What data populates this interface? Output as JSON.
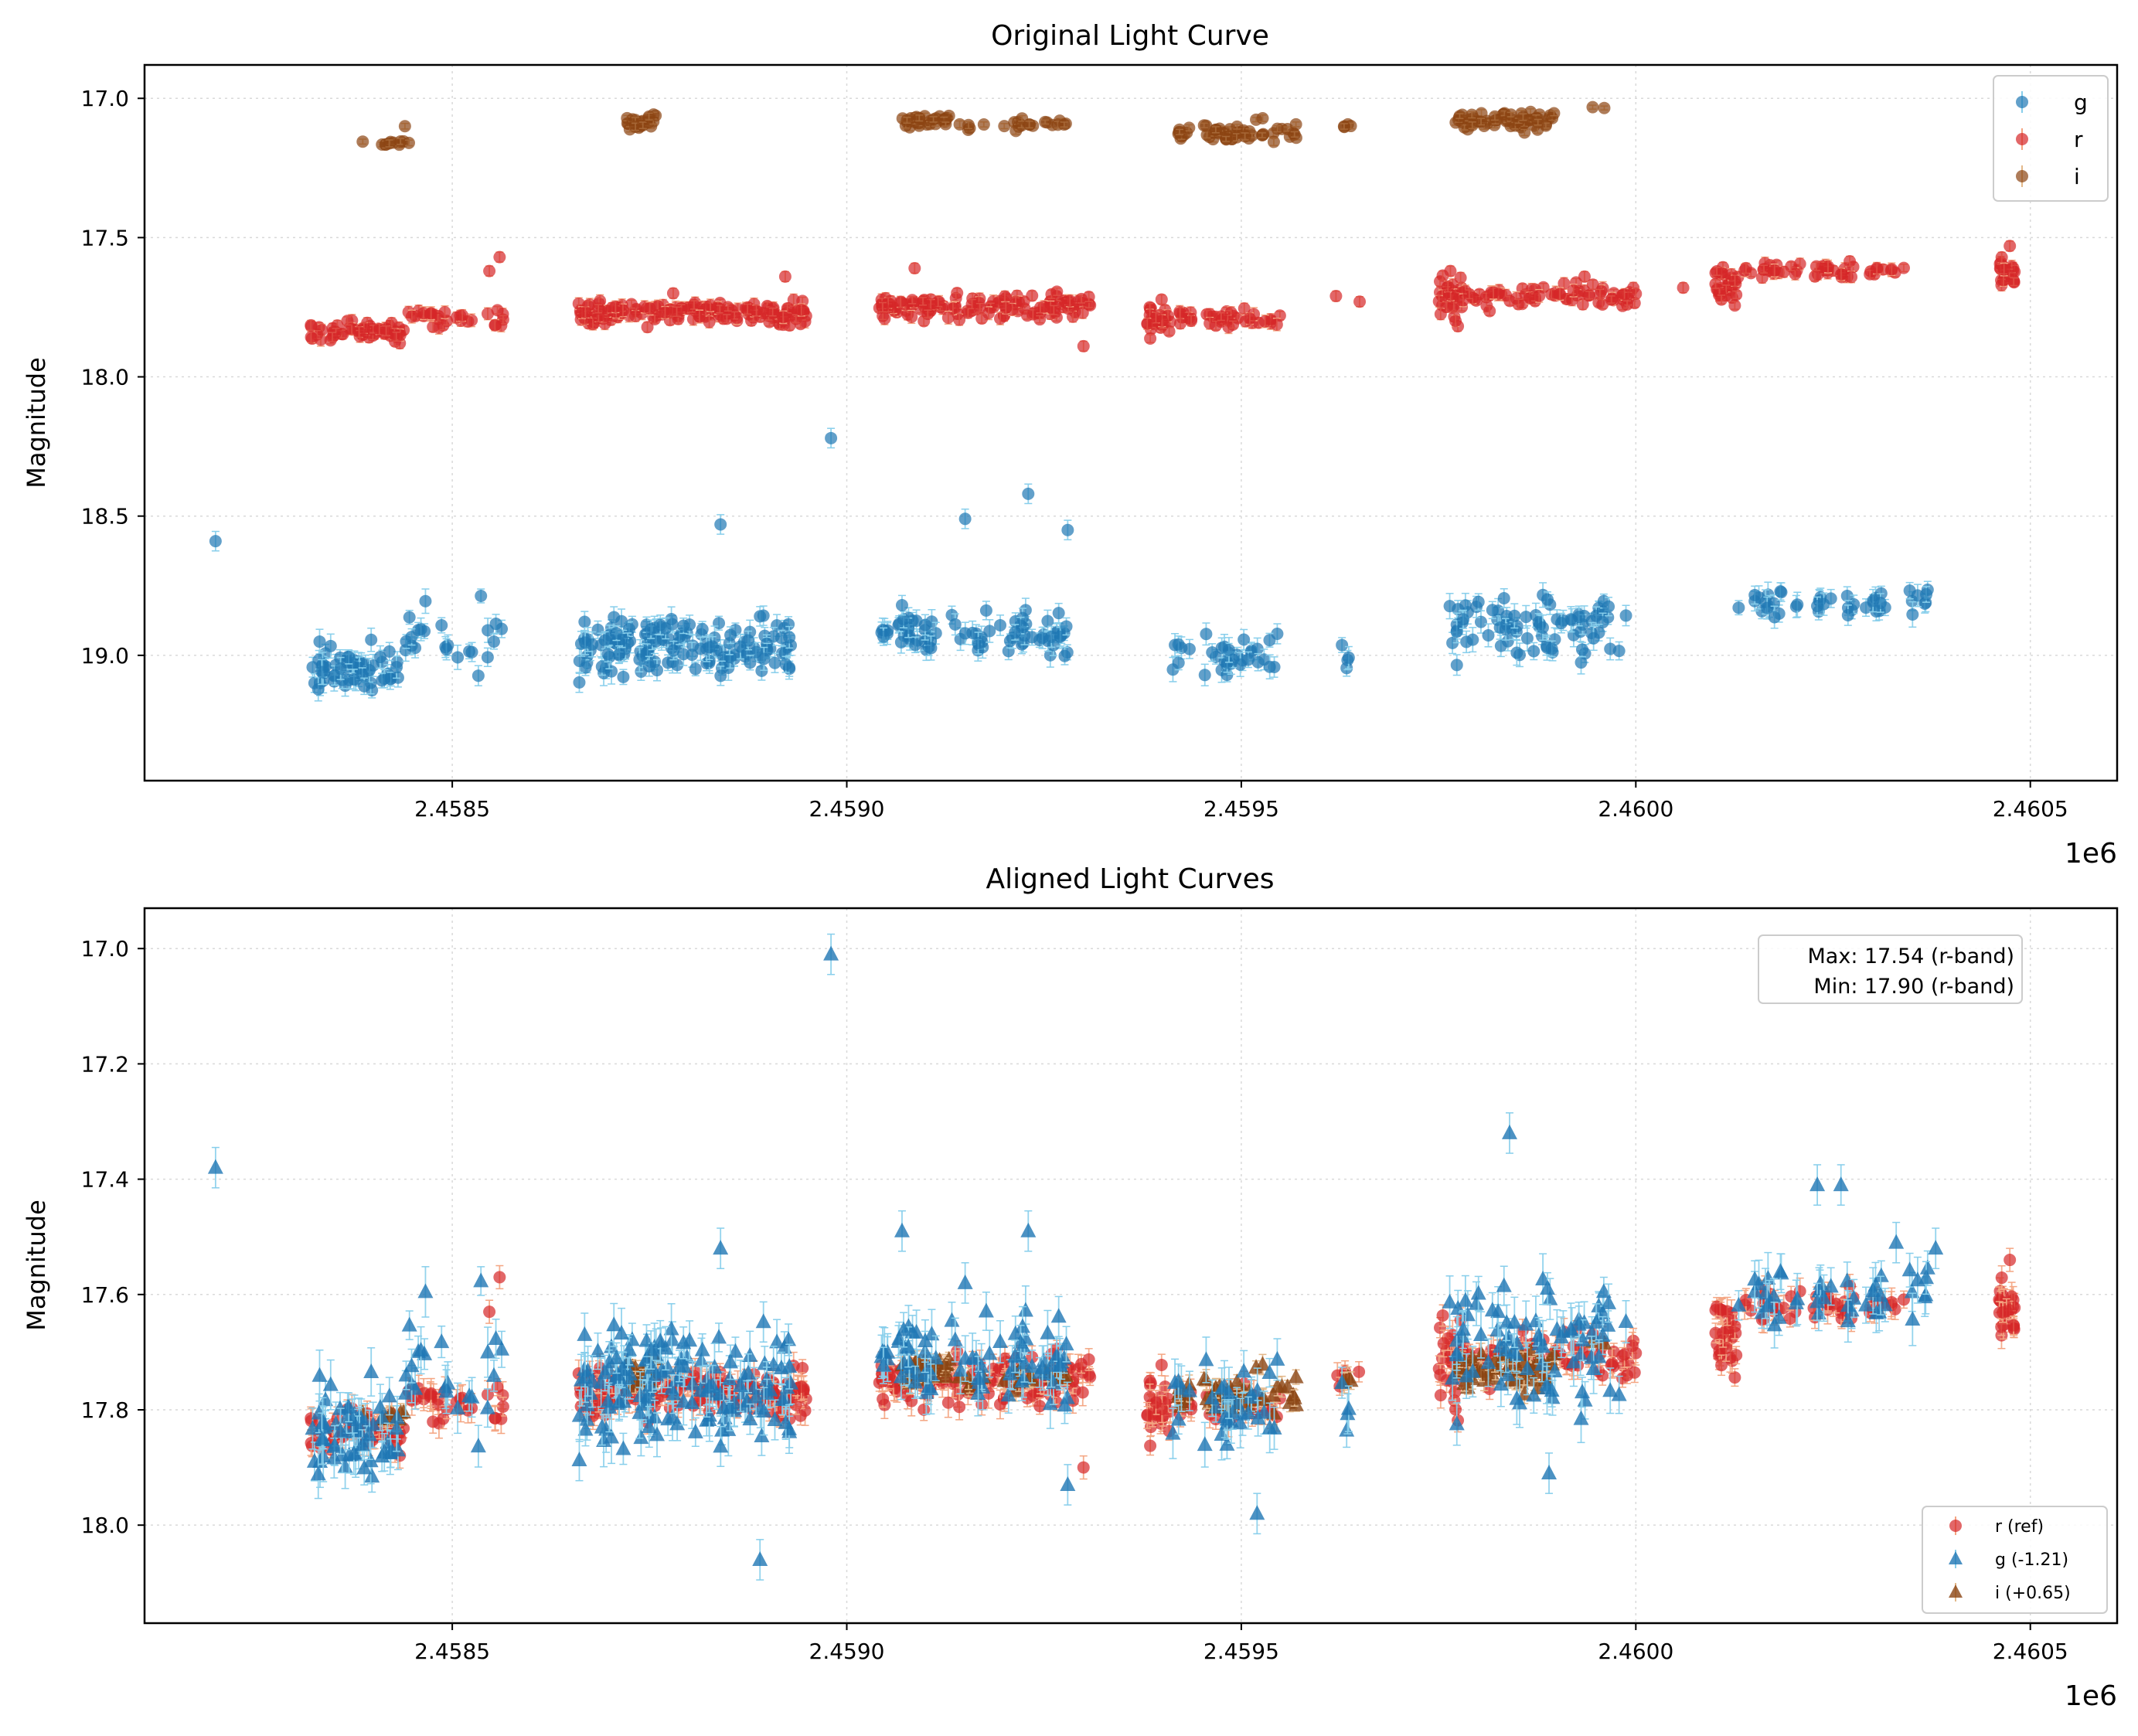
{
  "chart_data": [
    {
      "type": "scatter",
      "title": "Original Light Curve",
      "xlabel": "",
      "ylabel": "Magnitude",
      "x_offset_label": "1e6",
      "xlim": [
        2458110,
        2460610
      ],
      "ylim": [
        19.45,
        16.88
      ],
      "y_inverted": true,
      "grid": true,
      "xticks": [
        2458500,
        2459000,
        2459500,
        2460000,
        2460500
      ],
      "xtick_labels": [
        "2.4585",
        "2.4590",
        "2.4595",
        "2.4600",
        "2.4605"
      ],
      "yticks": [
        17.0,
        17.5,
        18.0,
        18.5,
        19.0
      ],
      "ytick_labels": [
        "17.0",
        "17.5",
        "18.0",
        "18.5",
        "19.0"
      ],
      "legend_position": "top-right",
      "legend": [
        {
          "label": "g",
          "color": "#1f77b4",
          "marker": "circle"
        },
        {
          "label": "r",
          "color": "#d62728",
          "marker": "circle"
        },
        {
          "label": "i",
          "color": "#8b4513",
          "marker": "circle"
        }
      ],
      "series": [
        {
          "name": "g",
          "color": "#1f77b4",
          "err_color": "#87ceeb",
          "marker": "circle",
          "err": 0.035,
          "seed": 11,
          "x": [
            2458200,
            2458840,
            2458890,
            2458980,
            2459070,
            2459150,
            2459230,
            2459280
          ],
          "y": [
            18.59,
            18.53,
            18.86,
            18.22,
            18.82,
            18.51,
            18.42,
            18.55
          ],
          "clusters": [
            {
              "x0": 2458320,
              "x1": 2458440,
              "n": 60,
              "ymean": 19.05,
              "yspread": 0.06
            },
            {
              "x0": 2458440,
              "x1": 2458570,
              "n": 24,
              "ymean": 18.95,
              "yspread": 0.1
            },
            {
              "x0": 2458660,
              "x1": 2458930,
              "n": 150,
              "ymean": 18.97,
              "yspread": 0.07
            },
            {
              "x0": 2459040,
              "x1": 2459280,
              "n": 80,
              "ymean": 18.92,
              "yspread": 0.05
            },
            {
              "x0": 2459410,
              "x1": 2459550,
              "n": 35,
              "ymean": 19.0,
              "yspread": 0.05
            },
            {
              "x0": 2459620,
              "x1": 2459650,
              "n": 4,
              "ymean": 19.02,
              "yspread": 0.06
            },
            {
              "x0": 2459760,
              "x1": 2459990,
              "n": 80,
              "ymean": 18.9,
              "yspread": 0.08
            },
            {
              "x0": 2460130,
              "x1": 2460380,
              "n": 45,
              "ymean": 18.81,
              "yspread": 0.03
            }
          ]
        },
        {
          "name": "r",
          "color": "#d62728",
          "err_color": "#f4a582",
          "marker": "circle",
          "err": 0.018,
          "seed": 23,
          "x": [
            2458560,
            2458547,
            2458780,
            2458922,
            2459086,
            2459300,
            2459620,
            2459650,
            2459765,
            2459935,
            2460060,
            2460474
          ],
          "y": [
            17.57,
            17.62,
            17.7,
            17.64,
            17.61,
            17.89,
            17.71,
            17.73,
            17.62,
            17.64,
            17.68,
            17.53
          ],
          "clusters": [
            {
              "x0": 2458320,
              "x1": 2458440,
              "n": 60,
              "ymean": 17.84,
              "yspread": 0.025
            },
            {
              "x0": 2458440,
              "x1": 2458570,
              "n": 30,
              "ymean": 17.79,
              "yspread": 0.03
            },
            {
              "x0": 2458660,
              "x1": 2458950,
              "n": 170,
              "ymean": 17.77,
              "yspread": 0.025
            },
            {
              "x0": 2459040,
              "x1": 2459310,
              "n": 130,
              "ymean": 17.75,
              "yspread": 0.03
            },
            {
              "x0": 2459380,
              "x1": 2459410,
              "n": 25,
              "ymean": 17.79,
              "yspread": 0.04
            },
            {
              "x0": 2459420,
              "x1": 2459550,
              "n": 40,
              "ymean": 17.79,
              "yspread": 0.02
            },
            {
              "x0": 2459750,
              "x1": 2459780,
              "n": 30,
              "ymean": 17.72,
              "yspread": 0.05
            },
            {
              "x0": 2459780,
              "x1": 2460000,
              "n": 70,
              "ymean": 17.71,
              "yspread": 0.03
            },
            {
              "x0": 2460100,
              "x1": 2460130,
              "n": 30,
              "ymean": 17.67,
              "yspread": 0.04
            },
            {
              "x0": 2460130,
              "x1": 2460340,
              "n": 50,
              "ymean": 17.62,
              "yspread": 0.02
            },
            {
              "x0": 2460460,
              "x1": 2460480,
              "n": 25,
              "ymean": 17.62,
              "yspread": 0.03
            }
          ]
        },
        {
          "name": "i",
          "color": "#8b4513",
          "err_color": "#e3b88a",
          "marker": "circle",
          "err": 0.01,
          "seed": 37,
          "x": [
            2458440,
            2458445
          ],
          "y": [
            17.1,
            17.16
          ],
          "clusters": [
            {
              "x0": 2458380,
              "x1": 2458440,
              "n": 10,
              "ymean": 17.16,
              "yspread": 0.015
            },
            {
              "x0": 2458720,
              "x1": 2458760,
              "n": 22,
              "ymean": 17.09,
              "yspread": 0.02
            },
            {
              "x0": 2459070,
              "x1": 2459130,
              "n": 30,
              "ymean": 17.08,
              "yspread": 0.015
            },
            {
              "x0": 2459130,
              "x1": 2459280,
              "n": 22,
              "ymean": 17.09,
              "yspread": 0.015
            },
            {
              "x0": 2459420,
              "x1": 2459570,
              "n": 55,
              "ymean": 17.12,
              "yspread": 0.025
            },
            {
              "x0": 2459620,
              "x1": 2459640,
              "n": 4,
              "ymean": 17.1,
              "yspread": 0.005
            },
            {
              "x0": 2459770,
              "x1": 2459900,
              "n": 60,
              "ymean": 17.08,
              "yspread": 0.025
            },
            {
              "x0": 2459940,
              "x1": 2459960,
              "n": 2,
              "ymean": 17.03,
              "yspread": 0.01
            }
          ]
        }
      ]
    },
    {
      "type": "scatter",
      "title": "Aligned Light Curves",
      "xlabel": "",
      "ylabel": "Magnitude",
      "x_offset_label": "1e6",
      "xlim": [
        2458110,
        2460610
      ],
      "ylim": [
        18.17,
        16.93
      ],
      "y_inverted": true,
      "grid": true,
      "xticks": [
        2458500,
        2459000,
        2459500,
        2460000,
        2460500
      ],
      "xtick_labels": [
        "2.4585",
        "2.4590",
        "2.4595",
        "2.4600",
        "2.4605"
      ],
      "yticks": [
        17.0,
        17.2,
        17.4,
        17.6,
        17.8,
        18.0
      ],
      "ytick_labels": [
        "17.0",
        "17.2",
        "17.4",
        "17.6",
        "17.8",
        "18.0"
      ],
      "annotation": {
        "line1": "Max: 17.54 (r-band)",
        "line2": "Min: 17.90 (r-band)",
        "position": "top-right"
      },
      "legend_position": "lower-right",
      "legend": [
        {
          "label": "r (ref)",
          "color": "#d62728",
          "marker": "circle"
        },
        {
          "label": "g (-1.21)",
          "color": "#1f77b4",
          "marker": "triangle"
        },
        {
          "label": "i (+0.65)",
          "color": "#8b4513",
          "marker": "triangle"
        }
      ],
      "series": [
        {
          "name": "r (ref)",
          "color": "#d62728",
          "err_color": "#f4a582",
          "marker": "circle",
          "err": 0.02,
          "seed": 23,
          "x": [
            2458560,
            2458547,
            2459300,
            2460474
          ],
          "y": [
            17.57,
            17.63,
            17.9,
            17.54
          ],
          "clusters": [
            {
              "x0": 2458320,
              "x1": 2458440,
              "n": 60,
              "ymean": 17.84,
              "yspread": 0.025
            },
            {
              "x0": 2458440,
              "x1": 2458570,
              "n": 30,
              "ymean": 17.79,
              "yspread": 0.03
            },
            {
              "x0": 2458660,
              "x1": 2458950,
              "n": 170,
              "ymean": 17.77,
              "yspread": 0.025
            },
            {
              "x0": 2459040,
              "x1": 2459310,
              "n": 130,
              "ymean": 17.75,
              "yspread": 0.03
            },
            {
              "x0": 2459380,
              "x1": 2459410,
              "n": 25,
              "ymean": 17.79,
              "yspread": 0.04
            },
            {
              "x0": 2459420,
              "x1": 2459550,
              "n": 40,
              "ymean": 17.79,
              "yspread": 0.02
            },
            {
              "x0": 2459620,
              "x1": 2459650,
              "n": 6,
              "ymean": 17.75,
              "yspread": 0.02
            },
            {
              "x0": 2459750,
              "x1": 2459780,
              "n": 30,
              "ymean": 17.72,
              "yspread": 0.05
            },
            {
              "x0": 2459780,
              "x1": 2460000,
              "n": 70,
              "ymean": 17.71,
              "yspread": 0.03
            },
            {
              "x0": 2460100,
              "x1": 2460130,
              "n": 30,
              "ymean": 17.67,
              "yspread": 0.04
            },
            {
              "x0": 2460130,
              "x1": 2460340,
              "n": 50,
              "ymean": 17.62,
              "yspread": 0.02
            },
            {
              "x0": 2460460,
              "x1": 2460480,
              "n": 25,
              "ymean": 17.62,
              "yspread": 0.03
            }
          ]
        },
        {
          "name": "i (+0.65)",
          "color": "#8b4513",
          "err_color": "#e3b88a",
          "marker": "triangle",
          "err": 0.015,
          "seed": 37,
          "x": [],
          "y": [],
          "clusters": [
            {
              "x0": 2458380,
              "x1": 2458440,
              "n": 10,
              "ymean": 17.81,
              "yspread": 0.015
            },
            {
              "x0": 2458720,
              "x1": 2458760,
              "n": 22,
              "ymean": 17.74,
              "yspread": 0.02
            },
            {
              "x0": 2459070,
              "x1": 2459130,
              "n": 30,
              "ymean": 17.73,
              "yspread": 0.015
            },
            {
              "x0": 2459130,
              "x1": 2459280,
              "n": 22,
              "ymean": 17.74,
              "yspread": 0.015
            },
            {
              "x0": 2459420,
              "x1": 2459570,
              "n": 55,
              "ymean": 17.77,
              "yspread": 0.025
            },
            {
              "x0": 2459620,
              "x1": 2459640,
              "n": 4,
              "ymean": 17.75,
              "yspread": 0.005
            },
            {
              "x0": 2459770,
              "x1": 2459900,
              "n": 60,
              "ymean": 17.73,
              "yspread": 0.025
            },
            {
              "x0": 2459940,
              "x1": 2459960,
              "n": 2,
              "ymean": 17.68,
              "yspread": 0.01
            }
          ]
        },
        {
          "name": "g (-1.21)",
          "color": "#1f77b4",
          "err_color": "#87ceeb",
          "marker": "triangle",
          "err": 0.035,
          "seed": 11,
          "x": [
            2458200,
            2458840,
            2458890,
            2458980,
            2459070,
            2459150,
            2459230,
            2459280,
            2459520,
            2459840,
            2459890,
            2460230,
            2460260,
            2460330,
            2460380
          ],
          "y": [
            17.38,
            17.52,
            18.06,
            17.01,
            17.49,
            17.58,
            17.49,
            17.93,
            17.98,
            17.32,
            17.91,
            17.41,
            17.41,
            17.51,
            17.52
          ],
          "clusters": [
            {
              "x0": 2458320,
              "x1": 2458440,
              "n": 60,
              "ymean": 17.84,
              "yspread": 0.06
            },
            {
              "x0": 2458440,
              "x1": 2458570,
              "n": 24,
              "ymean": 17.74,
              "yspread": 0.1
            },
            {
              "x0": 2458660,
              "x1": 2458930,
              "n": 150,
              "ymean": 17.76,
              "yspread": 0.07
            },
            {
              "x0": 2459040,
              "x1": 2459280,
              "n": 80,
              "ymean": 17.71,
              "yspread": 0.05
            },
            {
              "x0": 2459410,
              "x1": 2459550,
              "n": 35,
              "ymean": 17.79,
              "yspread": 0.05
            },
            {
              "x0": 2459620,
              "x1": 2459650,
              "n": 4,
              "ymean": 17.81,
              "yspread": 0.06
            },
            {
              "x0": 2459760,
              "x1": 2459990,
              "n": 80,
              "ymean": 17.69,
              "yspread": 0.08
            },
            {
              "x0": 2460130,
              "x1": 2460380,
              "n": 45,
              "ymean": 17.6,
              "yspread": 0.03
            }
          ]
        }
      ]
    }
  ]
}
